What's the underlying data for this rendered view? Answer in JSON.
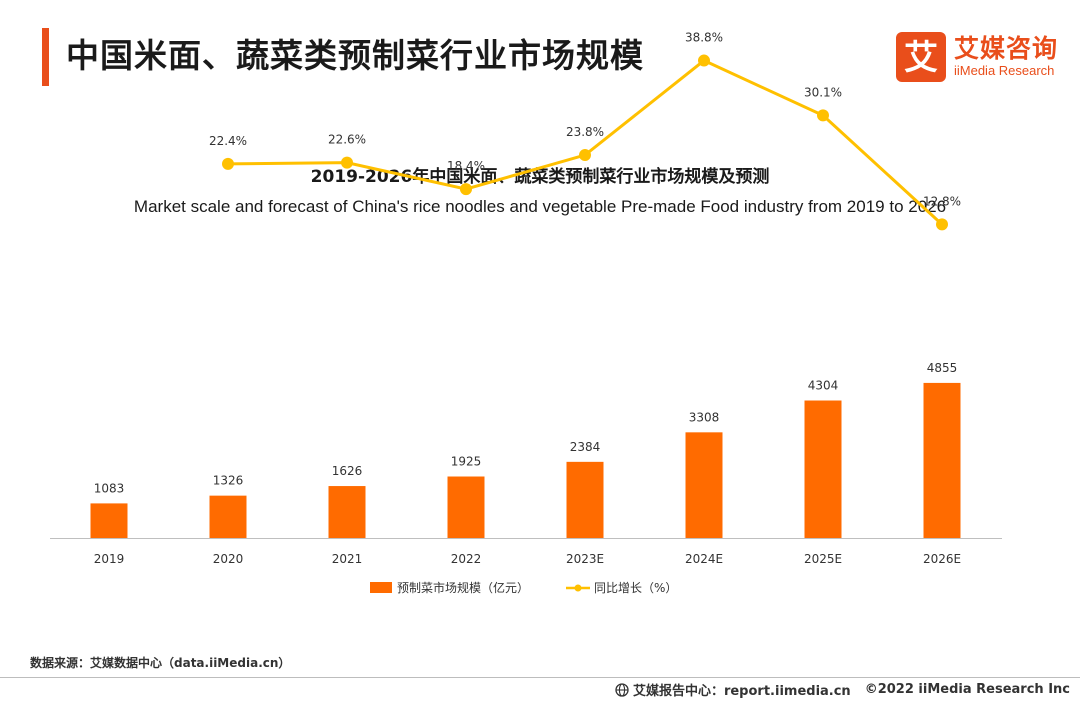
{
  "header": {
    "title": "中国米面、蔬菜类预制菜行业市场规模"
  },
  "logo": {
    "cn": "艾媒咨询",
    "en": "iiMedia Research",
    "mark": "艾"
  },
  "colors": {
    "accent": "#e94e1b",
    "bar": "#ff6b00",
    "line": "#ffc000",
    "axis": "#bfbfbf",
    "text": "#333333"
  },
  "chart_data": {
    "type": "bar+line",
    "title": "2019-2026年中国米面、蔬菜类预制菜行业市场规模及预测",
    "subtitle": "Market scale and forecast of China's rice noodles and vegetable Pre-made Food industry from 2019 to 2026",
    "categories": [
      "2019",
      "2020",
      "2021",
      "2022",
      "2023E",
      "2024E",
      "2025E",
      "2026E"
    ],
    "series": [
      {
        "name": "预制菜市场规模（亿元）",
        "type": "bar",
        "values": [
          1083,
          1326,
          1626,
          1925,
          2384,
          3308,
          4304,
          4855
        ],
        "labels": [
          "1083",
          "1326",
          "1626",
          "1925",
          "2384",
          "3308",
          "4304",
          "4855"
        ]
      },
      {
        "name": "同比增长（%）",
        "type": "line",
        "values": [
          null,
          22.4,
          22.6,
          18.4,
          23.8,
          38.8,
          30.1,
          12.8
        ],
        "labels": [
          "",
          "22.4%",
          "22.6%",
          "18.4%",
          "23.8%",
          "38.8%",
          "30.1%",
          "12.8%"
        ]
      }
    ],
    "bar_ylim": [
      0,
      18000
    ],
    "line_ylim": [
      -40,
      60
    ],
    "legend_position": "bottom-center",
    "grid": false
  },
  "source": "数据来源：艾媒数据中心（data.iiMedia.cn）",
  "footer": {
    "report": "艾媒报告中心：report.iimedia.cn",
    "copyright": "©2022  iiMedia Research  Inc"
  }
}
